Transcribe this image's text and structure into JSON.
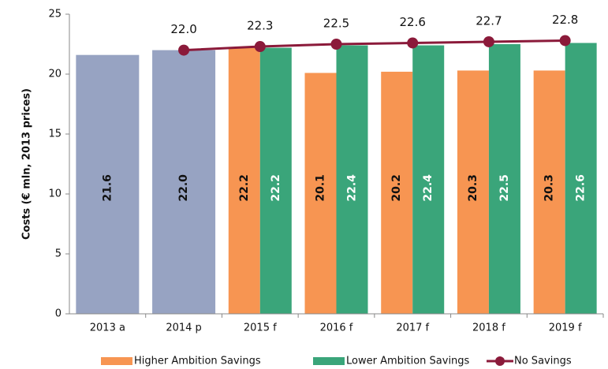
{
  "chart_data": {
    "type": "bar",
    "y_label": "Costs (€ mln, 2013 prices)",
    "categories": [
      "2013 a",
      "2014 p",
      "2015 f",
      "2016 f",
      "2017 f",
      "2018 f",
      "2019 f"
    ],
    "series": [
      {
        "color": "#97a3c2",
        "values": [
          21.6,
          22.0,
          null,
          null,
          null,
          null,
          null
        ],
        "value_labels": [
          "21.6",
          "22.0",
          null,
          null,
          null,
          null,
          null
        ]
      },
      {
        "name": "Higher Ambition Savings",
        "color": "#f79552",
        "values": [
          null,
          null,
          22.2,
          20.1,
          20.2,
          20.3,
          20.3
        ],
        "value_labels": [
          null,
          null,
          "22.2",
          "20.1",
          "20.2",
          "20.3",
          "20.3"
        ]
      },
      {
        "name": "Lower Ambition Savings",
        "color": "#3aa57a",
        "values": [
          null,
          null,
          22.2,
          22.4,
          22.4,
          22.5,
          22.6
        ],
        "value_labels": [
          null,
          null,
          "22.2",
          "22.4",
          "22.4",
          "22.5",
          "22.6"
        ]
      },
      {
        "name": "No Savings",
        "type": "line",
        "color": "#8b1a3a",
        "values": [
          null,
          22.0,
          22.3,
          22.5,
          22.6,
          22.7,
          22.8
        ],
        "value_labels": [
          null,
          "22.0",
          "22.3",
          "22.5",
          "22.6",
          "22.7",
          "22.8"
        ]
      }
    ],
    "ylim": [
      0,
      25
    ],
    "yticks": [
      0,
      5,
      10,
      15,
      20,
      25
    ],
    "grid": false
  }
}
